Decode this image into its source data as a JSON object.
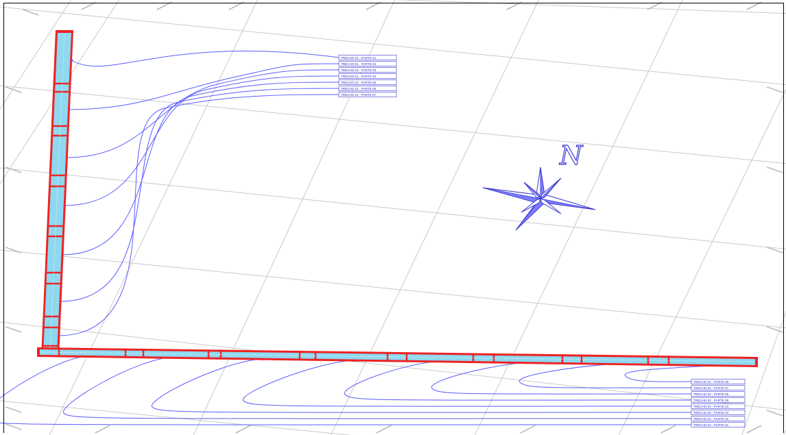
{
  "diagram": {
    "north_label": "N",
    "colors": {
      "wall_outline": "#ee2222",
      "wall_fill": "#8ed8f0",
      "leader_lines": "#5a5aff",
      "compass": "#3a3ad0",
      "grid": "#c9c9c9"
    },
    "icons": [
      "north-arrow-compass-icon"
    ],
    "grid_labels": {
      "top": [
        "",
        "",
        "",
        "",
        "",
        "",
        "",
        ""
      ],
      "left": [
        "",
        "",
        "",
        "",
        "",
        ""
      ],
      "right": [
        "",
        "",
        "",
        "",
        ""
      ],
      "bottom": [
        "",
        "",
        "",
        "",
        "",
        ""
      ]
    },
    "vertical_wall_labels": [
      "TRECHO 01 - PARTE 01",
      "TRECHO 01 - PARTE 02",
      "TRECHO 01 - PARTE 03",
      "TRECHO 01 - PARTE 04",
      "TRECHO 01 - PARTE 05",
      "TRECHO 01 - PARTE 06",
      "TRECHO 01 - PARTE 07"
    ],
    "horizontal_wall_labels": [
      "TRECHO 02 - PARTE 08",
      "TRECHO 02 - PARTE 07",
      "TRECHO 02 - PARTE 06",
      "TRECHO 02 - PARTE 05",
      "TRECHO 02 - PARTE 04",
      "TRECHO 02 - PARTE 03",
      "TRECHO 02 - PARTE 02",
      "TRECHO 02 - PARTE 01"
    ]
  }
}
